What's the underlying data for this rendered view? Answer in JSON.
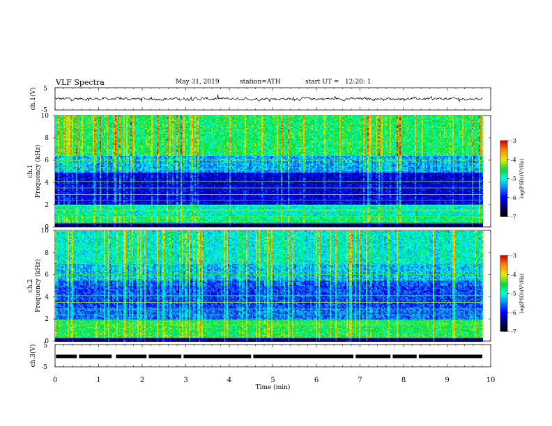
{
  "header": {
    "title": "VLF Spectra",
    "date": "May 31, 2019",
    "station": "station=ATH",
    "start_ut": "start UT =   12:20: 1"
  },
  "chart_data": [
    {
      "type": "line",
      "panel": "ch1",
      "ylabel": "ch.1(V)",
      "ylim": [
        -5,
        5
      ],
      "yticks": [
        "5",
        "-5"
      ],
      "xlim": [
        0,
        10
      ],
      "description_series": "noisy waveform near 0 V",
      "color": "#000000"
    },
    {
      "type": "heatmap",
      "panel": "spec1",
      "ylabel": "ch.1\nFrequency (kHz)",
      "ylabel_lines": [
        "ch.1",
        "Frequency (kHz)"
      ],
      "ylim": [
        0,
        10
      ],
      "yticks": [
        "0",
        "2",
        "4",
        "6",
        "8",
        "10"
      ],
      "xlim": [
        0,
        9.8
      ],
      "colorbar": {
        "label": "log(PSD)(V²/Hz)",
        "ticks": [
          "-3",
          "-4",
          "-5",
          "-6",
          "-7"
        ],
        "range": [
          -7,
          -3
        ]
      }
    },
    {
      "type": "heatmap",
      "panel": "spec2",
      "ylabel_lines": [
        "ch.2",
        "Frequency (kHz)"
      ],
      "ylim": [
        0,
        10
      ],
      "yticks": [
        "0",
        "2",
        "4",
        "6",
        "8",
        "10"
      ],
      "xlim": [
        0,
        9.8
      ],
      "colorbar": {
        "label": "log(PSD)(V²/Hz)",
        "ticks": [
          "-3",
          "-4",
          "-5",
          "-6",
          "-7"
        ],
        "range": [
          -7,
          -3
        ]
      }
    },
    {
      "type": "line",
      "panel": "ch3",
      "ylabel": "ch.3(V)",
      "ylim": [
        -5,
        5
      ],
      "yticks": [
        "5",
        "-5"
      ],
      "xlim": [
        0,
        10
      ],
      "level": 0,
      "gaps_min": [
        0.5,
        1.3,
        1.35,
        2.1,
        2.9,
        4.5,
        6.85,
        7.7,
        8.3
      ],
      "color": "#000000"
    }
  ],
  "xaxis": {
    "label": "Time (min)",
    "ticks": [
      "0",
      "1",
      "2",
      "3",
      "4",
      "5",
      "6",
      "7",
      "8",
      "9",
      "10"
    ]
  }
}
